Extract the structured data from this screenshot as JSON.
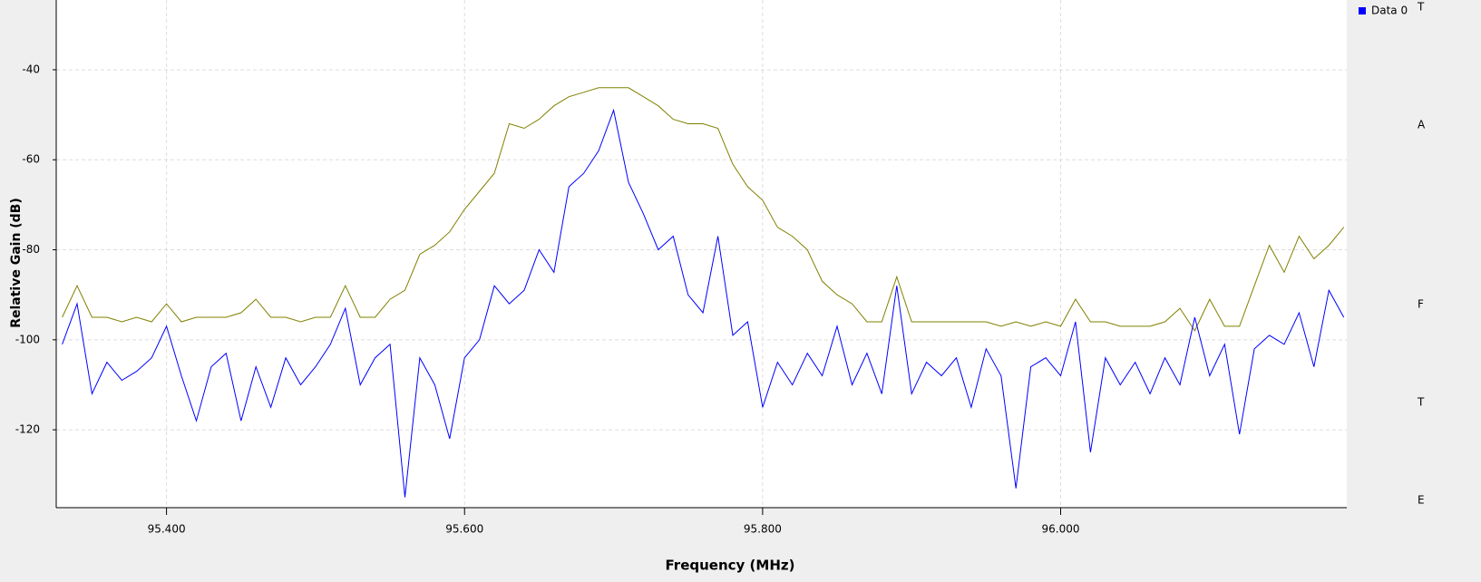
{
  "chart_data": {
    "type": "line",
    "xlabel": "Frequency (MHz)",
    "ylabel": "Relative Gain (dB)",
    "x": [
      95.33,
      95.34,
      95.35,
      95.36,
      95.37,
      95.38,
      95.39,
      95.4,
      95.41,
      95.42,
      95.43,
      95.44,
      95.45,
      95.46,
      95.47,
      95.48,
      95.49,
      95.5,
      95.51,
      95.52,
      95.53,
      95.54,
      95.55,
      95.56,
      95.57,
      95.58,
      95.59,
      95.6,
      95.61,
      95.62,
      95.63,
      95.64,
      95.65,
      95.66,
      95.67,
      95.68,
      95.69,
      95.7,
      95.71,
      95.72,
      95.73,
      95.74,
      95.75,
      95.76,
      95.77,
      95.78,
      95.79,
      95.8,
      95.81,
      95.82,
      95.83,
      95.84,
      95.85,
      95.86,
      95.87,
      95.88,
      95.89,
      95.9,
      95.91,
      95.92,
      95.93,
      95.94,
      95.95,
      95.96,
      95.97,
      95.98,
      95.99,
      96.0,
      96.01,
      96.02,
      96.03,
      96.04,
      96.05,
      96.06,
      96.07,
      96.08,
      96.09,
      96.1,
      96.11,
      96.12,
      96.13,
      96.14,
      96.15,
      96.16,
      96.17,
      96.18,
      96.19
    ],
    "series": [
      {
        "name": "Data 0",
        "color": "#0000ff",
        "values": [
          -101,
          -92,
          -112,
          -105,
          -109,
          -107,
          -104,
          -97,
          -108,
          -118,
          -106,
          -103,
          -118,
          -106,
          -115,
          -104,
          -110,
          -106,
          -101,
          -93,
          -110,
          -104,
          -101,
          -135,
          -104,
          -110,
          -122,
          -104,
          -100,
          -88,
          -92,
          -89,
          -80,
          -85,
          -66,
          -63,
          -58,
          -49,
          -65,
          -72,
          -80,
          -77,
          -90,
          -94,
          -77,
          -99,
          -96,
          -115,
          -105,
          -110,
          -103,
          -108,
          -97,
          -110,
          -103,
          -112,
          -88,
          -112,
          -105,
          -108,
          -104,
          -115,
          -102,
          -108,
          -133,
          -106,
          -104,
          -108,
          -96,
          -125,
          -104,
          -110,
          -105,
          -112,
          -104,
          -110,
          -95,
          -108,
          -101,
          -121,
          -102,
          -99,
          -101,
          -94,
          -106,
          -89,
          -95
        ]
      },
      {
        "color": "#808000",
        "values": [
          -95,
          -88,
          -95,
          -95,
          -96,
          -95,
          -96,
          -92,
          -96,
          -95,
          -95,
          -95,
          -94,
          -91,
          -95,
          -95,
          -96,
          -95,
          -95,
          -88,
          -95,
          -95,
          -91,
          -89,
          -81,
          -79,
          -76,
          -71,
          -67,
          -63,
          -52,
          -53,
          -51,
          -48,
          -46,
          -45,
          -44,
          -44,
          -44,
          -46,
          -48,
          -51,
          -52,
          -52,
          -53,
          -61,
          -66,
          -69,
          -75,
          -77,
          -80,
          -87,
          -90,
          -92,
          -96,
          -96,
          -86,
          -96,
          -96,
          -96,
          -96,
          -96,
          -96,
          -97,
          -96,
          -97,
          -96,
          -97,
          -91,
          -96,
          -96,
          -97,
          -97,
          -97,
          -96,
          -93,
          -98,
          -91,
          -97,
          -97,
          -88,
          -79,
          -85,
          -77,
          -82,
          -79,
          -75
        ]
      }
    ],
    "xlim": [
      95.326,
      96.192
    ],
    "ylim": [
      -137.3,
      -24.5
    ],
    "xticks": [
      {
        "value": 95.4,
        "label": "95.400"
      },
      {
        "value": 95.6,
        "label": "95.600"
      },
      {
        "value": 95.8,
        "label": "95.800"
      },
      {
        "value": 96.0,
        "label": "96.000"
      }
    ],
    "yticks": [
      -120,
      -100,
      -80,
      -60,
      -40
    ],
    "grid": true,
    "legend": "right"
  },
  "side_panel": {
    "labels": [
      "T",
      "A",
      "F",
      "T",
      "E"
    ]
  }
}
